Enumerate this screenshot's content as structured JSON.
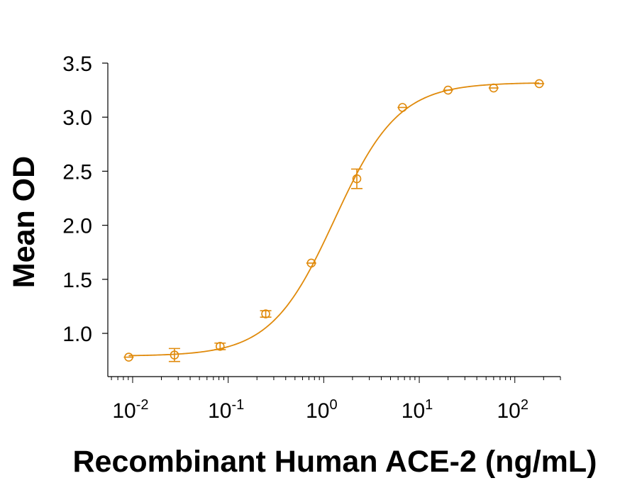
{
  "chart_data": {
    "type": "scatter",
    "title": "",
    "xlabel": "Recombinant Human ACE-2 (ng/mL)",
    "ylabel": "Mean OD",
    "x_scale": "log",
    "xlim": [
      0.0055,
      300
    ],
    "ylim": [
      0.6,
      3.5
    ],
    "x_ticks": [
      {
        "value": 0.01,
        "base": "10",
        "exp": "-2"
      },
      {
        "value": 0.1,
        "base": "10",
        "exp": "-1"
      },
      {
        "value": 1,
        "base": "10",
        "exp": "0"
      },
      {
        "value": 10,
        "base": "10",
        "exp": "1"
      },
      {
        "value": 100,
        "base": "10",
        "exp": "2"
      }
    ],
    "y_ticks": [
      "1.0",
      "1.5",
      "2.0",
      "2.5",
      "3.0",
      "3.5"
    ],
    "grid": false,
    "color": "#E08A0B",
    "series": [
      {
        "name": "",
        "points": [
          {
            "x": 0.0091,
            "y": 0.78,
            "err": 0.0
          },
          {
            "x": 0.0274,
            "y": 0.8,
            "err": 0.06
          },
          {
            "x": 0.0823,
            "y": 0.88,
            "err": 0.03
          },
          {
            "x": 0.247,
            "y": 1.18,
            "err": 0.03
          },
          {
            "x": 0.741,
            "y": 1.65,
            "err": 0.0
          },
          {
            "x": 2.22,
            "y": 2.43,
            "err": 0.09
          },
          {
            "x": 6.67,
            "y": 3.09,
            "err": 0.0
          },
          {
            "x": 20.0,
            "y": 3.25,
            "err": 0.0
          },
          {
            "x": 60.0,
            "y": 3.27,
            "err": 0.0
          },
          {
            "x": 180.0,
            "y": 3.31,
            "err": 0.0
          }
        ]
      }
    ],
    "fit_curve": {
      "model": "4PL",
      "bottom": 0.79,
      "top": 3.32,
      "ec50": 1.3,
      "hill": 1.3
    }
  }
}
